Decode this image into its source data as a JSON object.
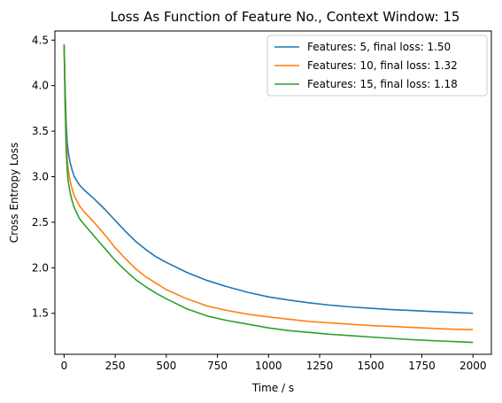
{
  "chart_data": {
    "type": "line",
    "title": "Loss As Function of Feature No., Context Window: 15",
    "xlabel": "Time / s",
    "ylabel": "Cross Entropy Loss",
    "xlim": [
      -45,
      2090
    ],
    "ylim": [
      1.05,
      4.6
    ],
    "xticks": [
      0,
      250,
      500,
      750,
      1000,
      1250,
      1500,
      1750,
      2000
    ],
    "yticks": [
      1.5,
      2.0,
      2.5,
      3.0,
      3.5,
      4.0,
      4.5
    ],
    "xtick_labels": [
      "0",
      "250",
      "500",
      "750",
      "1000",
      "1250",
      "1500",
      "1750",
      "2000"
    ],
    "ytick_labels": [
      "1.5",
      "2.0",
      "2.5",
      "3.0",
      "3.5",
      "4.0",
      "4.5"
    ],
    "grid": false,
    "legend_position": "top-right",
    "series": [
      {
        "name": "Features: 5, final loss: 1.50",
        "color": "#1f77b4",
        "x": [
          0,
          5,
          10,
          15,
          20,
          30,
          40,
          50,
          75,
          100,
          150,
          200,
          250,
          300,
          350,
          400,
          450,
          500,
          600,
          700,
          800,
          900,
          1000,
          1100,
          1200,
          1300,
          1400,
          1500,
          1600,
          1700,
          1800,
          1900,
          2000
        ],
        "y": [
          4.45,
          4.0,
          3.6,
          3.38,
          3.28,
          3.15,
          3.07,
          3.0,
          2.91,
          2.85,
          2.75,
          2.64,
          2.52,
          2.4,
          2.29,
          2.2,
          2.12,
          2.06,
          1.95,
          1.86,
          1.79,
          1.73,
          1.68,
          1.645,
          1.615,
          1.59,
          1.57,
          1.555,
          1.54,
          1.53,
          1.52,
          1.51,
          1.5
        ]
      },
      {
        "name": "Features: 10, final loss: 1.32",
        "color": "#ff7f0e",
        "x": [
          0,
          5,
          10,
          15,
          20,
          30,
          40,
          50,
          75,
          100,
          150,
          200,
          250,
          300,
          350,
          400,
          450,
          500,
          600,
          700,
          800,
          900,
          1000,
          1100,
          1200,
          1300,
          1400,
          1500,
          1600,
          1700,
          1800,
          1900,
          2000
        ],
        "y": [
          4.45,
          3.9,
          3.45,
          3.2,
          3.08,
          2.95,
          2.86,
          2.79,
          2.68,
          2.61,
          2.49,
          2.36,
          2.22,
          2.1,
          1.99,
          1.9,
          1.83,
          1.76,
          1.66,
          1.58,
          1.53,
          1.49,
          1.46,
          1.435,
          1.41,
          1.395,
          1.38,
          1.365,
          1.355,
          1.345,
          1.335,
          1.325,
          1.32
        ]
      },
      {
        "name": "Features: 15, final loss: 1.18",
        "color": "#2ca02c",
        "x": [
          0,
          5,
          10,
          15,
          20,
          30,
          40,
          50,
          75,
          100,
          150,
          200,
          250,
          300,
          350,
          400,
          450,
          500,
          600,
          700,
          800,
          900,
          1000,
          1100,
          1200,
          1300,
          1400,
          1500,
          1600,
          1700,
          1800,
          1900,
          2000
        ],
        "y": [
          4.45,
          3.8,
          3.3,
          3.08,
          2.95,
          2.82,
          2.73,
          2.66,
          2.54,
          2.47,
          2.34,
          2.21,
          2.08,
          1.97,
          1.87,
          1.79,
          1.72,
          1.66,
          1.55,
          1.47,
          1.42,
          1.38,
          1.34,
          1.31,
          1.29,
          1.27,
          1.255,
          1.24,
          1.225,
          1.21,
          1.2,
          1.19,
          1.18
        ]
      }
    ]
  }
}
